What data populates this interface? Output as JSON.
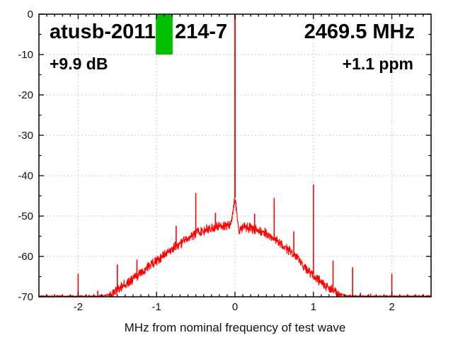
{
  "chart_data": {
    "type": "line",
    "title_parts": [
      "atusb-2011",
      "214-7"
    ],
    "xlabel": "MHz from nominal frequency of test wave",
    "ylabel": "",
    "xlim": [
      -2.5,
      2.5
    ],
    "ylim": [
      -70,
      0
    ],
    "grid": true,
    "x_major_ticks": [
      -2,
      -1,
      0,
      1,
      2
    ],
    "x_tick_labels": [
      "-2",
      "-1",
      "0",
      "1",
      "2"
    ],
    "x_minor_step": 0.1,
    "y_major_ticks": [
      0,
      -10,
      -20,
      -30,
      -40,
      -50,
      -60,
      -70
    ],
    "y_tick_labels": [
      "0",
      "-10",
      "-20",
      "-30",
      "-40",
      "-50",
      "-60",
      "-70"
    ],
    "y_minor_step": 5,
    "annotations": {
      "title_left": "atusb-2011",
      "title_right": "214-7",
      "frequency": "2469.5 MHz",
      "gain": "+9.9 dB",
      "offset_ppm": "+1.1 ppm"
    },
    "marker": {
      "x0": -1.01,
      "x1": -0.795,
      "y0": 0,
      "y1": -10,
      "color": "#00c000"
    },
    "colors": {
      "curve": "#ff0000",
      "grid": "#b8b8b8",
      "frame": "#000000",
      "text": "#111111"
    },
    "noise_band_db": 1.5,
    "envelope": [
      [
        -2.5,
        -70
      ],
      [
        -1.75,
        -70
      ],
      [
        -1.6,
        -69.6
      ],
      [
        -1.5,
        -68.3
      ],
      [
        -1.4,
        -66.9
      ],
      [
        -1.3,
        -65.4
      ],
      [
        -1.2,
        -64.1
      ],
      [
        -1.1,
        -62.6
      ],
      [
        -1.0,
        -61.2
      ],
      [
        -0.9,
        -59.7
      ],
      [
        -0.8,
        -58.2
      ],
      [
        -0.7,
        -56.7
      ],
      [
        -0.6,
        -55.4
      ],
      [
        -0.5,
        -54.2
      ],
      [
        -0.4,
        -53.5
      ],
      [
        -0.3,
        -53.0
      ],
      [
        -0.2,
        -52.6
      ],
      [
        -0.1,
        -52.4
      ],
      [
        -0.06,
        -52.3
      ],
      [
        -0.04,
        -50.5
      ],
      [
        -0.02,
        -47.5
      ],
      [
        0,
        -45.5
      ],
      [
        0.02,
        -48.5
      ],
      [
        0.035,
        -51.5
      ],
      [
        0.05,
        -54.3
      ],
      [
        0.07,
        -53.3
      ],
      [
        0.1,
        -52.6
      ],
      [
        0.2,
        -53.0
      ],
      [
        0.3,
        -53.6
      ],
      [
        0.4,
        -54.4
      ],
      [
        0.5,
        -55.6
      ],
      [
        0.6,
        -57.1
      ],
      [
        0.7,
        -58.7
      ],
      [
        0.8,
        -60.6
      ],
      [
        0.9,
        -62.7
      ],
      [
        1.0,
        -64.7
      ],
      [
        1.1,
        -66.4
      ],
      [
        1.2,
        -67.9
      ],
      [
        1.3,
        -69.1
      ],
      [
        1.4,
        -69.8
      ],
      [
        1.5,
        -70
      ],
      [
        2.5,
        -70
      ]
    ],
    "spikes": [
      [
        -2.0,
        -64.3
      ],
      [
        -1.75,
        -68.5
      ],
      [
        -1.5,
        -62.0
      ],
      [
        -1.25,
        -60.8
      ],
      [
        -0.75,
        -52.4
      ],
      [
        -0.5,
        -44.3
      ],
      [
        -0.25,
        -49.2
      ],
      [
        0.25,
        -49.4
      ],
      [
        0.5,
        -45.5
      ],
      [
        0.75,
        -53.8
      ],
      [
        1.0,
        -42.2
      ],
      [
        1.25,
        -61.0
      ],
      [
        1.5,
        -62.7
      ],
      [
        1.6,
        -69.0
      ],
      [
        1.73,
        -69.2
      ],
      [
        2.0,
        -64.3
      ]
    ],
    "center_spike": [
      0,
      0
    ]
  }
}
